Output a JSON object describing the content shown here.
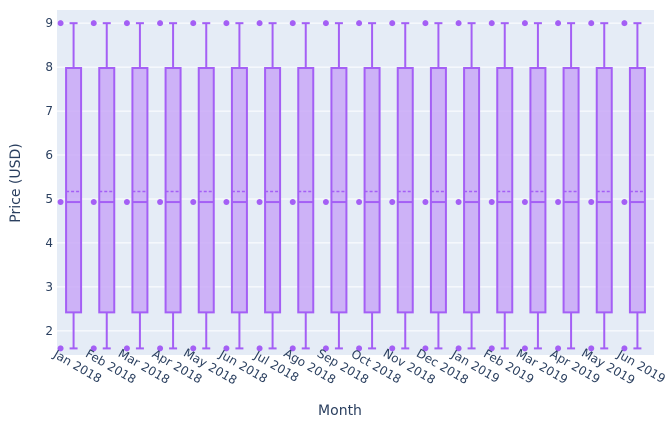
{
  "chart_data": {
    "type": "box",
    "title": "",
    "xlabel": "Month",
    "ylabel": "Price (USD)",
    "categories": [
      "Jan 2018",
      "Feb 2018",
      "Mar 2018",
      "Apr 2018",
      "May 2018",
      "Jun 2018",
      "Jul 2018",
      "Ago 2018",
      "Sep 2018",
      "Oct 2018",
      "Nov 2018",
      "Dec 2018",
      "Jan 2019",
      "Feb 2019",
      "Mar 2019",
      "Apr 2019",
      "May 2019",
      "Jun 2019"
    ],
    "yticks": [
      "2",
      "3",
      "4",
      "5",
      "6",
      "7",
      "8",
      "9"
    ],
    "ylim": [
      1.45,
      9.3
    ],
    "grid": true,
    "box": {
      "min": 1.6,
      "q1": 2.42,
      "median": 4.93,
      "mean": 5.17,
      "q3": 7.98,
      "max": 9.0
    },
    "points": [
      {
        "y": 9.0
      },
      {
        "y": 4.93
      },
      {
        "y": 1.6
      }
    ],
    "colors": {
      "box_line": "#a45ff5",
      "box_fill": "#c9a8f7",
      "plot_background": "#e5ecf6",
      "grid": "#ffffff",
      "text": "#2a3f5f"
    }
  }
}
